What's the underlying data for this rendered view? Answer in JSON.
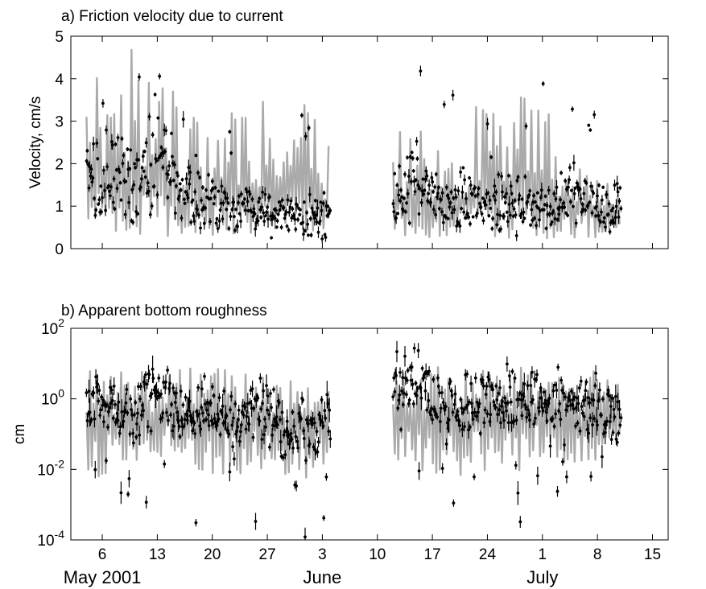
{
  "chart_data": [
    {
      "type": "scatter",
      "title": "a) Friction velocity due to current",
      "ylabel": "Velocity, cm/s",
      "xlabel": "",
      "ylim": [
        0,
        5
      ],
      "yscale": "linear",
      "yticks": [
        0,
        1,
        2,
        3,
        4,
        5
      ],
      "xlim_day": [
        0,
        47
      ],
      "xticks": [
        {
          "day": 6,
          "label": "6"
        },
        {
          "day": 13,
          "label": "13"
        },
        {
          "day": 20,
          "label": "20"
        },
        {
          "day": 27,
          "label": "27"
        },
        {
          "day": 34,
          "label": "3"
        },
        {
          "day": 41,
          "label": "10"
        },
        {
          "day": 48,
          "label": "17"
        },
        {
          "day": 55,
          "label": "24"
        },
        {
          "day": 62,
          "label": "1"
        },
        {
          "day": 69,
          "label": "8"
        },
        {
          "day": 76,
          "label": "15"
        }
      ],
      "x_start": "2001-05-01",
      "gap": [
        "2001-06-06",
        "2001-06-13"
      ],
      "grid": false,
      "series": [
        {
          "role": "points",
          "color": "#000000",
          "marker": "dot",
          "error_bars": true,
          "segments": [
            {
              "x": [
                "2001-05-05",
                "2001-05-08",
                "2001-05-10",
                "2001-05-13",
                "2001-05-15",
                "2001-05-17",
                "2001-05-20",
                "2001-05-23",
                "2001-05-27",
                "2001-05-30",
                "2001-06-02",
                "2001-06-05"
              ],
              "y": [
                1.5,
                1.7,
                1.8,
                1.5,
                2.2,
                1.3,
                1.2,
                1.0,
                0.9,
                0.8,
                0.75,
                0.8
              ]
            },
            {
              "x": [
                "2001-06-13",
                "2001-06-16",
                "2001-06-19",
                "2001-06-22",
                "2001-06-25",
                "2001-06-28",
                "2001-07-01",
                "2001-07-04",
                "2001-07-07",
                "2001-07-10",
                "2001-07-12"
              ],
              "y": [
                1.2,
                1.5,
                1.1,
                1.1,
                1.0,
                1.1,
                1.0,
                1.1,
                1.2,
                1.0,
                1.0
              ]
            }
          ]
        },
        {
          "role": "envelope",
          "color": "#aaaaaa",
          "style": "band",
          "segments": [
            {
              "x": [
                "2001-05-05",
                "2001-05-09",
                "2001-05-14",
                "2001-05-16",
                "2001-05-20",
                "2001-05-27",
                "2001-06-01",
                "2001-06-05"
              ],
              "y_max": [
                4.3,
                5.0,
                5.0,
                3.8,
                3.2,
                3.7,
                3.8,
                2.5
              ],
              "y_min": [
                0.3,
                0.2,
                0.2,
                0.2,
                0.3,
                0.2,
                0.3,
                0.3
              ]
            },
            {
              "x": [
                "2001-06-13",
                "2001-06-20",
                "2001-06-27",
                "2001-07-04",
                "2001-07-12"
              ],
              "y_max": [
                3.0,
                3.0,
                4.1,
                3.0,
                2.0
              ],
              "y_min": [
                0.3,
                0.2,
                0.2,
                0.2,
                0.2
              ]
            }
          ]
        }
      ]
    },
    {
      "type": "scatter",
      "title": "b) Apparent bottom roughness",
      "ylabel": "cm",
      "xlabel": "",
      "ylim": [
        0.0001,
        100
      ],
      "yscale": "log",
      "yticks": [
        {
          "value": 0.0001,
          "base": "10",
          "exp": "-4"
        },
        {
          "value": 0.01,
          "base": "10",
          "exp": "-2"
        },
        {
          "value": 1,
          "base": "10",
          "exp": "0"
        },
        {
          "value": 100,
          "base": "10",
          "exp": "2"
        }
      ],
      "xlim_day": [
        0,
        47
      ],
      "xticks": [
        {
          "day": 6,
          "label": "6"
        },
        {
          "day": 13,
          "label": "13"
        },
        {
          "day": 20,
          "label": "20"
        },
        {
          "day": 27,
          "label": "27"
        },
        {
          "day": 34,
          "label": "3"
        },
        {
          "day": 41,
          "label": "10"
        },
        {
          "day": 48,
          "label": "17"
        },
        {
          "day": 55,
          "label": "24"
        },
        {
          "day": 62,
          "label": "1"
        },
        {
          "day": 69,
          "label": "8"
        },
        {
          "day": 76,
          "label": "15"
        }
      ],
      "x_start": "2001-05-01",
      "gap": [
        "2001-06-06",
        "2001-06-13"
      ],
      "grid": false,
      "series": [
        {
          "role": "points",
          "color": "#000000",
          "marker": "dot",
          "error_bars": true,
          "segments": [
            {
              "x": [
                "2001-05-05",
                "2001-05-08",
                "2001-05-11",
                "2001-05-14",
                "2001-05-17",
                "2001-05-20",
                "2001-05-23",
                "2001-05-27",
                "2001-05-30",
                "2001-06-02",
                "2001-06-05"
              ],
              "y": [
                0.8,
                0.5,
                0.3,
                1.5,
                0.2,
                0.5,
                0.3,
                0.5,
                0.2,
                0.1,
                0.3
              ]
            },
            {
              "x": [
                "2001-06-13",
                "2001-06-15",
                "2001-06-18",
                "2001-06-22",
                "2001-06-25",
                "2001-06-28",
                "2001-07-01",
                "2001-07-05",
                "2001-07-09",
                "2001-07-12"
              ],
              "y": [
                1.0,
                5.0,
                1.0,
                0.5,
                0.8,
                0.5,
                0.8,
                0.6,
                0.5,
                0.4
              ]
            }
          ]
        },
        {
          "role": "envelope",
          "color": "#aaaaaa",
          "style": "band",
          "segments": [
            {
              "x": [
                "2001-05-05",
                "2001-05-14",
                "2001-05-23",
                "2001-06-05"
              ],
              "y_max": [
                7,
                8,
                8,
                4
              ],
              "y_min": [
                0.005,
                0.01,
                0.005,
                0.005
              ]
            },
            {
              "x": [
                "2001-06-13",
                "2001-06-22",
                "2001-07-01",
                "2001-07-12"
              ],
              "y_max": [
                10,
                8,
                8,
                6
              ],
              "y_min": [
                0.01,
                0.005,
                0.01,
                0.02
              ]
            }
          ]
        }
      ]
    }
  ],
  "xaxis": {
    "month_labels": [
      {
        "day": 6,
        "label": "May 2001"
      },
      {
        "day": 34,
        "label": "June"
      },
      {
        "day": 62,
        "label": "July"
      }
    ]
  }
}
